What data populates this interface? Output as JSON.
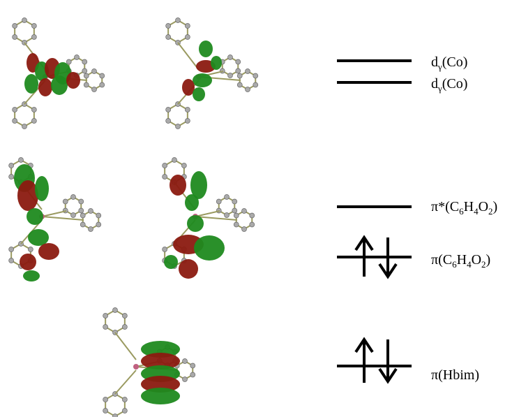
{
  "levels": [
    {
      "label": [
        {
          "text": "d"
        },
        {
          "sub": "γ"
        },
        {
          "text": "(Co)"
        }
      ]
    },
    {
      "label": [
        {
          "text": "d"
        },
        {
          "sub": "γ"
        },
        {
          "text": "(Co)"
        }
      ]
    },
    {
      "label": [
        {
          "text": "π*(C"
        },
        {
          "sub": "6"
        },
        {
          "text": "H"
        },
        {
          "sub": "4"
        },
        {
          "text": "O"
        },
        {
          "sub": "2"
        },
        {
          "text": ")"
        }
      ]
    },
    {
      "label": [
        {
          "text": "π(C"
        },
        {
          "sub": "6"
        },
        {
          "text": "H"
        },
        {
          "sub": "4"
        },
        {
          "text": "O"
        },
        {
          "sub": "2"
        },
        {
          "text": ")"
        }
      ]
    },
    {
      "label": [
        {
          "text": "π(Hbim)"
        }
      ]
    }
  ]
}
